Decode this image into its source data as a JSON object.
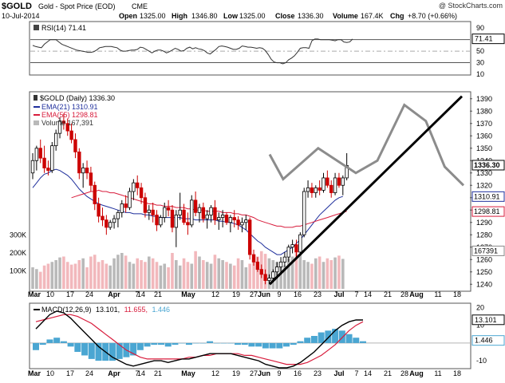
{
  "header": {
    "symbol": "$GOLD",
    "description": "Gold - Spot Price (EOD)",
    "exchange": "CME",
    "watermark": "@ StockCharts.com",
    "date": "10-Jul-2014",
    "open_label": "Open",
    "open": "1325.00",
    "high_label": "High",
    "high": "1346.80",
    "low_label": "Low",
    "low": "1325.00",
    "close_label": "Close",
    "close": "1336.30",
    "volume_label": "Volume",
    "volume": "167.4K",
    "chg_label": "Chg",
    "chg": "+8.70 (+0.66%)"
  },
  "colors": {
    "up": "#000000",
    "down": "#cc0000",
    "ema21": "#1f2f9c",
    "ema55": "#d81c3c",
    "projection": "#8c8c8c",
    "trendline": "#000000",
    "macd_hist": "#4aa6d2",
    "macd_signal": "#d81c3c",
    "macd": "#000000",
    "vol_up": "#b9b9b9",
    "vol_down": "#f2b8bc"
  },
  "chart_data": [
    {
      "type": "line",
      "title": "RSI(14) 71.41",
      "series": [
        {
          "name": "RSI(14)",
          "values": [
            60,
            58,
            57,
            56,
            62,
            66,
            70,
            70,
            70,
            66,
            62,
            60,
            58,
            56,
            54,
            52,
            51,
            50,
            49,
            48,
            48,
            49,
            52,
            56,
            57,
            58,
            58,
            58,
            57,
            56,
            52,
            50,
            50,
            51,
            52,
            52,
            53,
            57,
            56,
            53,
            50,
            47,
            50,
            52,
            52,
            50,
            47,
            49,
            52,
            55,
            53,
            50,
            51,
            55,
            57,
            54,
            56,
            54,
            53,
            51,
            47,
            45,
            49,
            53,
            58,
            59,
            58,
            57,
            55,
            53,
            53,
            55,
            59,
            58,
            57,
            57,
            56,
            55,
            56,
            55,
            51,
            44,
            36,
            31,
            30,
            30,
            28,
            30,
            35,
            38,
            42,
            48,
            55,
            56,
            56,
            55,
            68,
            71,
            71,
            70,
            70,
            70,
            70,
            69,
            68,
            70,
            70,
            66,
            65,
            66,
            71
          ]
        }
      ],
      "ylim": [
        10,
        100
      ],
      "ticks": [
        "90",
        "70",
        "50",
        "30",
        "10"
      ],
      "current_value": "71.41"
    },
    {
      "type": "candlestick",
      "title": "$GOLD (Daily) 1336.30",
      "legend": [
        "EMA(21) 1310.91",
        "EMA(55) 1298.81",
        "Volume 167,391"
      ],
      "ohlc": [
        [
          1330,
          1346,
          1325,
          1340
        ],
        [
          1340,
          1352,
          1332,
          1350
        ],
        [
          1350,
          1357,
          1338,
          1342
        ],
        [
          1342,
          1352,
          1330,
          1334
        ],
        [
          1334,
          1340,
          1328,
          1332
        ],
        [
          1332,
          1355,
          1330,
          1352
        ],
        [
          1352,
          1365,
          1348,
          1362
        ],
        [
          1362,
          1375,
          1358,
          1372
        ],
        [
          1372,
          1378,
          1365,
          1370
        ],
        [
          1370,
          1374,
          1360,
          1364
        ],
        [
          1364,
          1370,
          1354,
          1357
        ],
        [
          1357,
          1362,
          1342,
          1347
        ],
        [
          1347,
          1350,
          1325,
          1330
        ],
        [
          1330,
          1338,
          1318,
          1334
        ],
        [
          1334,
          1340,
          1325,
          1330
        ],
        [
          1330,
          1335,
          1315,
          1320
        ],
        [
          1320,
          1323,
          1300,
          1305
        ],
        [
          1305,
          1310,
          1290,
          1295
        ],
        [
          1295,
          1302,
          1287,
          1292
        ],
        [
          1292,
          1296,
          1280,
          1286
        ],
        [
          1286,
          1292,
          1284,
          1290
        ],
        [
          1290,
          1296,
          1285,
          1293
        ],
        [
          1293,
          1300,
          1286,
          1298
        ],
        [
          1298,
          1308,
          1294,
          1305
        ],
        [
          1305,
          1312,
          1298,
          1302
        ],
        [
          1302,
          1318,
          1300,
          1315
        ],
        [
          1315,
          1325,
          1308,
          1322
        ],
        [
          1322,
          1328,
          1312,
          1318
        ],
        [
          1318,
          1322,
          1305,
          1310
        ],
        [
          1310,
          1314,
          1294,
          1298
        ],
        [
          1298,
          1304,
          1292,
          1300
        ],
        [
          1300,
          1306,
          1290,
          1296
        ],
        [
          1296,
          1300,
          1283,
          1288
        ],
        [
          1288,
          1296,
          1286,
          1294
        ],
        [
          1294,
          1306,
          1290,
          1302
        ],
        [
          1302,
          1308,
          1295,
          1300
        ],
        [
          1300,
          1304,
          1282,
          1286
        ],
        [
          1286,
          1300,
          1270,
          1296
        ],
        [
          1296,
          1314,
          1292,
          1300
        ],
        [
          1300,
          1305,
          1288,
          1290
        ],
        [
          1290,
          1298,
          1280,
          1288
        ],
        [
          1288,
          1312,
          1286,
          1308
        ],
        [
          1308,
          1315,
          1295,
          1298
        ],
        [
          1298,
          1305,
          1290,
          1302
        ],
        [
          1302,
          1306,
          1290,
          1293
        ],
        [
          1293,
          1300,
          1285,
          1296
        ],
        [
          1296,
          1304,
          1290,
          1302
        ],
        [
          1302,
          1308,
          1288,
          1292
        ],
        [
          1292,
          1298,
          1284,
          1294
        ],
        [
          1294,
          1300,
          1286,
          1296
        ],
        [
          1296,
          1298,
          1288,
          1290
        ],
        [
          1290,
          1296,
          1282,
          1294
        ],
        [
          1294,
          1300,
          1286,
          1292
        ],
        [
          1292,
          1295,
          1284,
          1288
        ],
        [
          1288,
          1294,
          1282,
          1290
        ],
        [
          1290,
          1296,
          1284,
          1292
        ],
        [
          1292,
          1294,
          1260,
          1264
        ],
        [
          1264,
          1268,
          1255,
          1258
        ],
        [
          1258,
          1262,
          1250,
          1252
        ],
        [
          1252,
          1256,
          1245,
          1248
        ],
        [
          1248,
          1252,
          1240,
          1243
        ],
        [
          1243,
          1248,
          1240,
          1245
        ],
        [
          1245,
          1252,
          1242,
          1250
        ],
        [
          1250,
          1258,
          1246,
          1254
        ],
        [
          1254,
          1262,
          1250,
          1258
        ],
        [
          1258,
          1266,
          1254,
          1262
        ],
        [
          1262,
          1272,
          1258,
          1270
        ],
        [
          1270,
          1276,
          1265,
          1272
        ],
        [
          1272,
          1276,
          1262,
          1266
        ],
        [
          1266,
          1282,
          1264,
          1280
        ],
        [
          1280,
          1318,
          1278,
          1315
        ],
        [
          1315,
          1324,
          1310,
          1318
        ],
        [
          1318,
          1322,
          1310,
          1314
        ],
        [
          1314,
          1320,
          1310,
          1318
        ],
        [
          1318,
          1324,
          1312,
          1316
        ],
        [
          1316,
          1330,
          1314,
          1326
        ],
        [
          1326,
          1332,
          1318,
          1320
        ],
        [
          1320,
          1324,
          1310,
          1314
        ],
        [
          1314,
          1330,
          1312,
          1326
        ],
        [
          1326,
          1330,
          1318,
          1320
        ],
        [
          1320,
          1328,
          1312,
          1326
        ],
        [
          1326,
          1346,
          1324,
          1336
        ]
      ],
      "ema21": [
        1318,
        1322,
        1326,
        1329,
        1330,
        1332,
        1333,
        1332,
        1330,
        1328,
        1325,
        1321,
        1317,
        1314,
        1311,
        1309,
        1307,
        1305,
        1304,
        1303,
        1302,
        1301,
        1300,
        1299,
        1298,
        1298,
        1297,
        1297,
        1297,
        1296,
        1296,
        1295,
        1295,
        1294,
        1294,
        1294,
        1294,
        1294,
        1294,
        1293,
        1293,
        1293,
        1292,
        1292,
        1292,
        1292,
        1292,
        1292,
        1291,
        1291,
        1290,
        1290,
        1289,
        1288,
        1286,
        1284,
        1281,
        1278,
        1275,
        1273,
        1270,
        1268,
        1266,
        1264,
        1264,
        1266,
        1268,
        1270,
        1273,
        1276,
        1280,
        1284,
        1288,
        1292,
        1296,
        1299,
        1302,
        1305,
        1308,
        1310,
        1311
      ],
      "ema55": [
        1310,
        1311,
        1312,
        1313,
        1314,
        1315,
        1315,
        1316,
        1315,
        1315,
        1314,
        1314,
        1313,
        1312,
        1311,
        1310,
        1309,
        1308,
        1307,
        1306,
        1305,
        1305,
        1304,
        1304,
        1303,
        1303,
        1303,
        1302,
        1302,
        1302,
        1301,
        1301,
        1300,
        1300,
        1300,
        1299,
        1299,
        1299,
        1299,
        1298,
        1298,
        1298,
        1297,
        1297,
        1296,
        1296,
        1295,
        1294,
        1292,
        1291,
        1290,
        1289,
        1288,
        1287,
        1287,
        1286,
        1286,
        1286,
        1287,
        1287,
        1288,
        1289,
        1290,
        1291,
        1292,
        1293,
        1294,
        1295,
        1296,
        1297,
        1298,
        1299
      ],
      "volume": [
        120,
        110,
        95,
        130,
        140,
        150,
        160,
        175,
        180,
        150,
        135,
        140,
        160,
        170,
        120,
        180,
        190,
        150,
        160,
        140,
        130,
        170,
        190,
        200,
        185,
        150,
        140,
        170,
        160,
        150,
        180,
        170,
        150,
        130,
        140,
        120,
        200,
        160,
        130,
        170,
        150,
        140,
        210,
        180,
        160,
        150,
        140,
        190,
        170,
        160,
        150,
        140,
        130,
        170,
        160,
        120,
        140,
        160,
        180,
        210,
        195,
        170,
        160,
        150,
        140,
        130,
        170,
        180,
        200,
        190,
        160,
        150,
        140,
        170,
        180,
        150,
        170,
        160,
        175,
        185,
        167
      ],
      "volume_up": [
        true,
        true,
        false,
        false,
        false,
        true,
        true,
        true,
        false,
        false,
        false,
        false,
        false,
        true,
        false,
        false,
        false,
        false,
        false,
        false,
        true,
        true,
        true,
        true,
        false,
        true,
        true,
        false,
        false,
        false,
        true,
        false,
        false,
        true,
        true,
        false,
        false,
        true,
        true,
        false,
        false,
        true,
        false,
        true,
        false,
        true,
        true,
        false,
        true,
        true,
        false,
        true,
        false,
        false,
        true,
        true,
        false,
        false,
        false,
        false,
        false,
        true,
        true,
        true,
        true,
        true,
        true,
        true,
        false,
        true,
        true,
        true,
        false,
        true,
        false,
        true,
        false,
        false,
        true,
        false,
        true
      ],
      "projection": [
        [
          1328,
          1345
        ],
        [
          1333,
          1325
        ],
        [
          1346,
          1350
        ],
        [
          1353,
          1340
        ],
        [
          1360,
          1330
        ],
        [
          1368,
          1340
        ],
        [
          1378,
          1385
        ],
        [
          1386,
          1372
        ],
        [
          1393,
          1335
        ],
        [
          1400,
          1320
        ]
      ],
      "trendline": [
        [
          1240,
          1240
        ],
        [
          1392,
          1392
        ]
      ],
      "ylim": [
        1235,
        1395
      ],
      "ticks": [
        "1390",
        "1380",
        "1370",
        "1360",
        "1350",
        "1340",
        "1330",
        "1320",
        "1310",
        "1300",
        "1290",
        "1280",
        "1270",
        "1260",
        "1250",
        "1240"
      ],
      "volume_ticks": [
        "300K",
        "200K",
        "100K"
      ],
      "markers": [
        {
          "label": "1336.30",
          "value": 1336.3
        },
        {
          "label": "1310.91",
          "value": 1310.91
        },
        {
          "label": "1298.81",
          "value": 1298.81
        },
        {
          "label": "167391",
          "value": 1267
        }
      ]
    },
    {
      "type": "line",
      "title": "MACD(12,26,9) 13.101, 11.655, 1.446",
      "title_parts": {
        "name": "MACD(12,26,9)",
        "macd": "13.101,",
        "signal": "11.655,",
        "hist": "1.446"
      },
      "macd": [
        8,
        12,
        16,
        18,
        17,
        14,
        10,
        6,
        2,
        -2,
        -5,
        -8,
        -10,
        -12,
        -13,
        -12,
        -11,
        -10,
        -10,
        -11,
        -10,
        -9,
        -9,
        -8,
        -7,
        -6,
        -6,
        -6,
        -6,
        -7,
        -8,
        -9,
        -10,
        -12,
        -13,
        -14,
        -14,
        -13,
        -11,
        -8,
        -5,
        -1,
        3,
        7,
        10,
        12,
        13,
        13
      ],
      "signal": [
        12,
        13,
        14,
        15,
        16,
        16,
        15,
        13,
        11,
        8,
        5,
        2,
        -1,
        -4,
        -6,
        -8,
        -9,
        -9,
        -9,
        -9,
        -9,
        -9,
        -8,
        -8,
        -7,
        -7,
        -6,
        -6,
        -6,
        -6,
        -7,
        -7,
        -8,
        -9,
        -10,
        -11,
        -12,
        -12,
        -12,
        -11,
        -9,
        -7,
        -4,
        -1,
        3,
        7,
        10,
        12
      ],
      "histogram": [
        -4,
        -1,
        2,
        3,
        1,
        -2,
        -5,
        -7,
        -9,
        -10,
        -10,
        -10,
        -9,
        -8,
        -7,
        -4,
        -2,
        -1,
        -1,
        -2,
        -1,
        0,
        -1,
        0,
        0,
        1,
        0,
        0,
        0,
        -1,
        -1,
        -2,
        -2,
        -3,
        -3,
        -3,
        -2,
        -1,
        1,
        3,
        4,
        6,
        7,
        8,
        7,
        5,
        3,
        1
      ],
      "ylim": [
        -14,
        22
      ],
      "ticks": [
        "20",
        "10",
        "-10"
      ],
      "markers": [
        {
          "label": "13.101",
          "value": 13.101
        },
        {
          "label": "1.446",
          "value": 1.446
        }
      ]
    }
  ],
  "x_axis": {
    "labels": [
      "Mar",
      "10",
      "17",
      "24",
      "Apr",
      "7",
      "14",
      "21",
      "May",
      "12",
      "19",
      "27",
      "Jun",
      "9",
      "16",
      "23",
      "Jul",
      "7",
      "14",
      "21",
      "28",
      "Aug",
      "11",
      "18"
    ],
    "bold": [
      "Mar",
      "Apr",
      "May",
      "Jun",
      "Jul",
      "Aug"
    ]
  }
}
